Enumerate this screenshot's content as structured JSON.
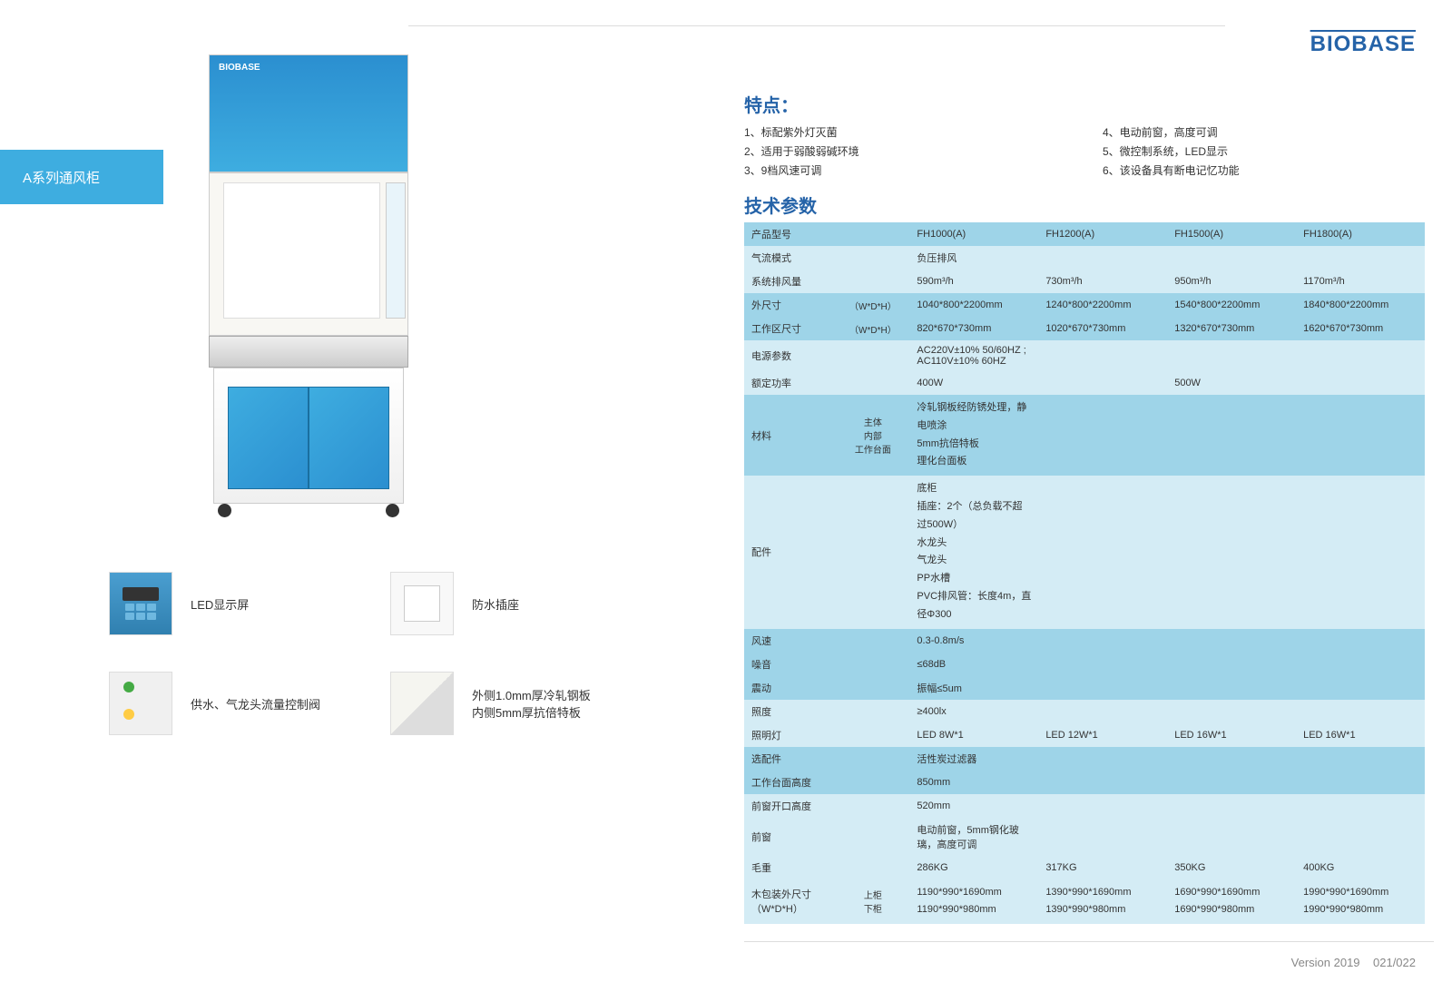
{
  "brand": "BIOBASE",
  "side_tab": "A系列通风柜",
  "footer_version": "Version 2019",
  "footer_page": "021/022",
  "details": [
    {
      "label": "LED显示屏",
      "thumb": "led"
    },
    {
      "label": "防水插座",
      "thumb": "socket"
    },
    {
      "label": "供水、气龙头流量控制阀",
      "thumb": "valve"
    },
    {
      "label": "外侧1.0mm厚冷轧钢板\n内侧5mm厚抗倍特板",
      "thumb": "panel"
    }
  ],
  "features": {
    "title": "特点：",
    "items": [
      "1、标配紫外灯灭菌",
      "4、电动前窗，高度可调",
      "2、适用于弱酸弱碱环境",
      "5、微控制系统，LED显示",
      "3、9档风速可调",
      "6、该设备具有断电记忆功能"
    ]
  },
  "spec_title": "技术参数",
  "spec": {
    "models": [
      "FH1000(A)",
      "FH1200(A)",
      "FH1500(A)",
      "FH1800(A)"
    ],
    "rows": [
      {
        "label": "产品型号",
        "sub": "",
        "vals": [
          "FH1000(A)",
          "FH1200(A)",
          "FH1500(A)",
          "FH1800(A)"
        ],
        "tone": "dark"
      },
      {
        "label": "气流模式",
        "sub": "",
        "vals": [
          "负压排风",
          "",
          "",
          ""
        ],
        "tone": "light"
      },
      {
        "label": "系统排风量",
        "sub": "",
        "vals": [
          "590m³/h",
          "730m³/h",
          "950m³/h",
          "1170m³/h"
        ],
        "tone": "light"
      },
      {
        "label": "外尺寸",
        "sub": "（W*D*H）",
        "vals": [
          "1040*800*2200mm",
          "1240*800*2200mm",
          "1540*800*2200mm",
          "1840*800*2200mm"
        ],
        "tone": "dark"
      },
      {
        "label": "工作区尺寸",
        "sub": "（W*D*H）",
        "vals": [
          "820*670*730mm",
          "1020*670*730mm",
          "1320*670*730mm",
          "1620*670*730mm"
        ],
        "tone": "dark"
      },
      {
        "label": "电源参数",
        "sub": "",
        "vals": [
          "AC220V±10% 50/60HZ ; AC110V±10% 60HZ",
          "",
          "",
          ""
        ],
        "tone": "light"
      },
      {
        "label": "额定功率",
        "sub": "",
        "vals": [
          "400W",
          "",
          "500W",
          ""
        ],
        "tone": "light"
      },
      {
        "label": "材料",
        "sub": "主体\n内部\n工作台面",
        "vals": [
          "冷轧钢板经防锈处理，静电喷涂\n5mm抗倍特板\n理化台面板",
          "",
          "",
          ""
        ],
        "tone": "dark",
        "multi": true
      },
      {
        "label": "配件",
        "sub": "",
        "vals": [
          "底柜\n插座：2个（总负载不超过500W）\n水龙头\n气龙头\nPP水槽\nPVC排风管：长度4m，直径Φ300",
          "",
          "",
          ""
        ],
        "tone": "light",
        "multi": true
      },
      {
        "label": "风速",
        "sub": "",
        "vals": [
          "0.3-0.8m/s",
          "",
          "",
          ""
        ],
        "tone": "dark"
      },
      {
        "label": "噪音",
        "sub": "",
        "vals": [
          "≤68dB",
          "",
          "",
          ""
        ],
        "tone": "dark"
      },
      {
        "label": "震动",
        "sub": "",
        "vals": [
          "振幅≤5um",
          "",
          "",
          ""
        ],
        "tone": "dark"
      },
      {
        "label": "照度",
        "sub": "",
        "vals": [
          "≥400lx",
          "",
          "",
          ""
        ],
        "tone": "light"
      },
      {
        "label": "照明灯",
        "sub": "",
        "vals": [
          "LED 8W*1",
          "LED 12W*1",
          "LED 16W*1",
          "LED 16W*1"
        ],
        "tone": "light"
      },
      {
        "label": "选配件",
        "sub": "",
        "vals": [
          "活性炭过滤器",
          "",
          "",
          ""
        ],
        "tone": "dark"
      },
      {
        "label": "工作台面高度",
        "sub": "",
        "vals": [
          "850mm",
          "",
          "",
          ""
        ],
        "tone": "dark"
      },
      {
        "label": "前窗开口高度",
        "sub": "",
        "vals": [
          "520mm",
          "",
          "",
          ""
        ],
        "tone": "light"
      },
      {
        "label": "前窗",
        "sub": "",
        "vals": [
          "电动前窗，5mm钢化玻璃，高度可调",
          "",
          "",
          ""
        ],
        "tone": "light"
      },
      {
        "label": "毛重",
        "sub": "",
        "vals": [
          "286KG",
          "317KG",
          "350KG",
          "400KG"
        ],
        "tone": "light"
      },
      {
        "label": "木包装外尺寸\n（W*D*H）",
        "sub": "上柜\n下柜",
        "vals": [
          "1190*990*1690mm\n1190*990*980mm",
          "1390*990*1690mm\n1390*990*980mm",
          "1690*990*1690mm\n1690*990*980mm",
          "1990*990*1690mm\n1990*990*980mm"
        ],
        "tone": "light",
        "multi": true
      }
    ]
  },
  "colors": {
    "brand": "#2563a8",
    "accent": "#3eade0",
    "row_dark": "#9ed4e8",
    "row_light": "#d4ecf5"
  }
}
